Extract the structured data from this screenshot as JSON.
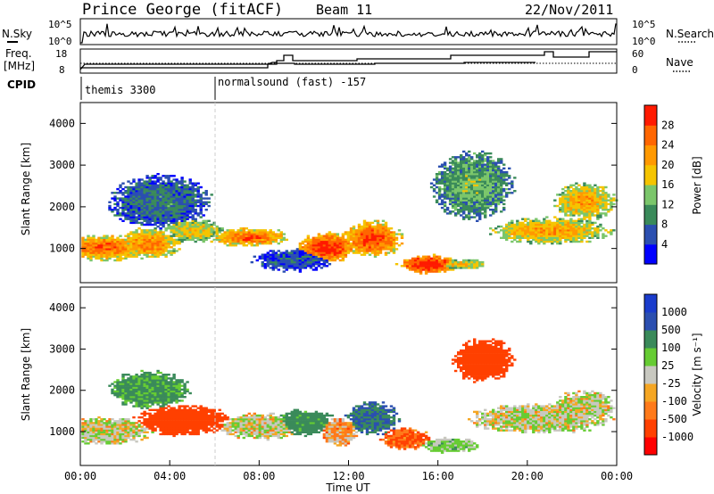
{
  "header": {
    "station": "Prince George (fitACF)",
    "beam": "Beam 11",
    "date": "22/Nov/2011"
  },
  "top_panels": {
    "nsky_label": "N.Sky",
    "nsky_ticks": [
      "10^5",
      "10^0"
    ],
    "nsearch_label": "N.Search",
    "nsearch_ticks": [
      "10^5",
      "10^0"
    ],
    "freq_label": [
      "Freq.",
      "[MHz]"
    ],
    "freq_ticks": [
      "18",
      "8"
    ],
    "nave_label": "Nave",
    "nave_ticks": [
      "60",
      "0"
    ],
    "cpid_label": "CPID",
    "cpid_segments": [
      {
        "label": "themis 3300",
        "start_hour": 0
      },
      {
        "label": "normalsound (fast) -157",
        "start_hour": 6
      }
    ]
  },
  "colors": {
    "power": [
      "#0000ff",
      "#2b4fb0",
      "#3a8a5a",
      "#7bc66b",
      "#f5c400",
      "#ff9900",
      "#ff6600",
      "#ff1a00"
    ],
    "velocity": [
      "#ff0000",
      "#ff4000",
      "#ff7a1a",
      "#f5a623",
      "#c8c8c0",
      "#66cc33",
      "#3a8a5a",
      "#2b4fb0",
      "#1a3ccc"
    ]
  },
  "chart_data": [
    {
      "type": "heatmap",
      "title": "Power",
      "ylabel": "Slant Range [km]",
      "ylim": [
        180,
        4500
      ],
      "yticks": [
        "1000",
        "2000",
        "3000",
        "4000"
      ],
      "colorbar_label": "Power [dB]",
      "colorbar_ticks": [
        "4",
        "8",
        "12",
        "16",
        "20",
        "24",
        "28"
      ],
      "clim": [
        0,
        32
      ],
      "blobs": [
        {
          "t": 1.0,
          "r": 1000,
          "tw": 2.2,
          "rw": 350,
          "v": 24
        },
        {
          "t": 3.0,
          "r": 1100,
          "tw": 1.6,
          "rw": 400,
          "v": 22
        },
        {
          "t": 5.0,
          "r": 1400,
          "tw": 1.5,
          "rw": 300,
          "v": 18
        },
        {
          "t": 3.5,
          "r": 2100,
          "tw": 2.5,
          "rw": 700,
          "v": 8
        },
        {
          "t": 7.5,
          "r": 1250,
          "tw": 2.0,
          "rw": 250,
          "v": 24
        },
        {
          "t": 11.0,
          "r": 1000,
          "tw": 1.5,
          "rw": 400,
          "v": 28
        },
        {
          "t": 13.0,
          "r": 1200,
          "tw": 1.5,
          "rw": 500,
          "v": 26
        },
        {
          "t": 15.5,
          "r": 600,
          "tw": 1.5,
          "rw": 250,
          "v": 30
        },
        {
          "t": 17.0,
          "r": 600,
          "tw": 1.2,
          "rw": 150,
          "v": 18
        },
        {
          "t": 17.5,
          "r": 2500,
          "tw": 2.0,
          "rw": 900,
          "v": 12
        },
        {
          "t": 21.0,
          "r": 1400,
          "tw": 3.0,
          "rw": 350,
          "v": 20
        },
        {
          "t": 22.5,
          "r": 2100,
          "tw": 1.5,
          "rw": 500,
          "v": 20
        },
        {
          "t": 9.5,
          "r": 700,
          "tw": 2.0,
          "rw": 300,
          "v": 6
        }
      ]
    },
    {
      "type": "heatmap",
      "title": "Velocity",
      "ylabel": "Slant Range [km]",
      "xlabel": "Time UT",
      "ylim": [
        180,
        4500
      ],
      "yticks": [
        "1000",
        "2000",
        "3000",
        "4000"
      ],
      "xticks": [
        "00:00",
        "04:00",
        "08:00",
        "12:00",
        "16:00",
        "20:00",
        "00:00"
      ],
      "xlim": [
        0,
        24
      ],
      "colorbar_label": "Velocity [m s⁻¹]",
      "colorbar_ticks": [
        "1000",
        "500",
        "100",
        "25",
        "-25",
        "-100",
        "-500",
        "-1000"
      ],
      "blobs": [
        {
          "t": 1.0,
          "r": 1000,
          "tw": 2.5,
          "rw": 350,
          "v": 0
        },
        {
          "t": 4.5,
          "r": 1250,
          "tw": 2.5,
          "rw": 400,
          "v": -200
        },
        {
          "t": 8.0,
          "r": 1100,
          "tw": 2.0,
          "rw": 350,
          "v": 0
        },
        {
          "t": 10.0,
          "r": 1200,
          "tw": 1.5,
          "rw": 350,
          "v": 150
        },
        {
          "t": 11.5,
          "r": 1000,
          "tw": 1.0,
          "rw": 400,
          "v": -50
        },
        {
          "t": 13.0,
          "r": 1300,
          "tw": 1.3,
          "rw": 450,
          "v": 300
        },
        {
          "t": 14.5,
          "r": 800,
          "tw": 1.2,
          "rw": 300,
          "v": -100
        },
        {
          "t": 16.5,
          "r": 650,
          "tw": 1.5,
          "rw": 200,
          "v": 50
        },
        {
          "t": 18.0,
          "r": 2700,
          "tw": 1.5,
          "rw": 600,
          "v": -300
        },
        {
          "t": 20.5,
          "r": 1300,
          "tw": 3.5,
          "rw": 400,
          "v": 0
        },
        {
          "t": 22.5,
          "r": 1600,
          "tw": 1.5,
          "rw": 400,
          "v": 0
        },
        {
          "t": 3.0,
          "r": 2000,
          "tw": 2.0,
          "rw": 500,
          "v": 120
        }
      ]
    }
  ]
}
